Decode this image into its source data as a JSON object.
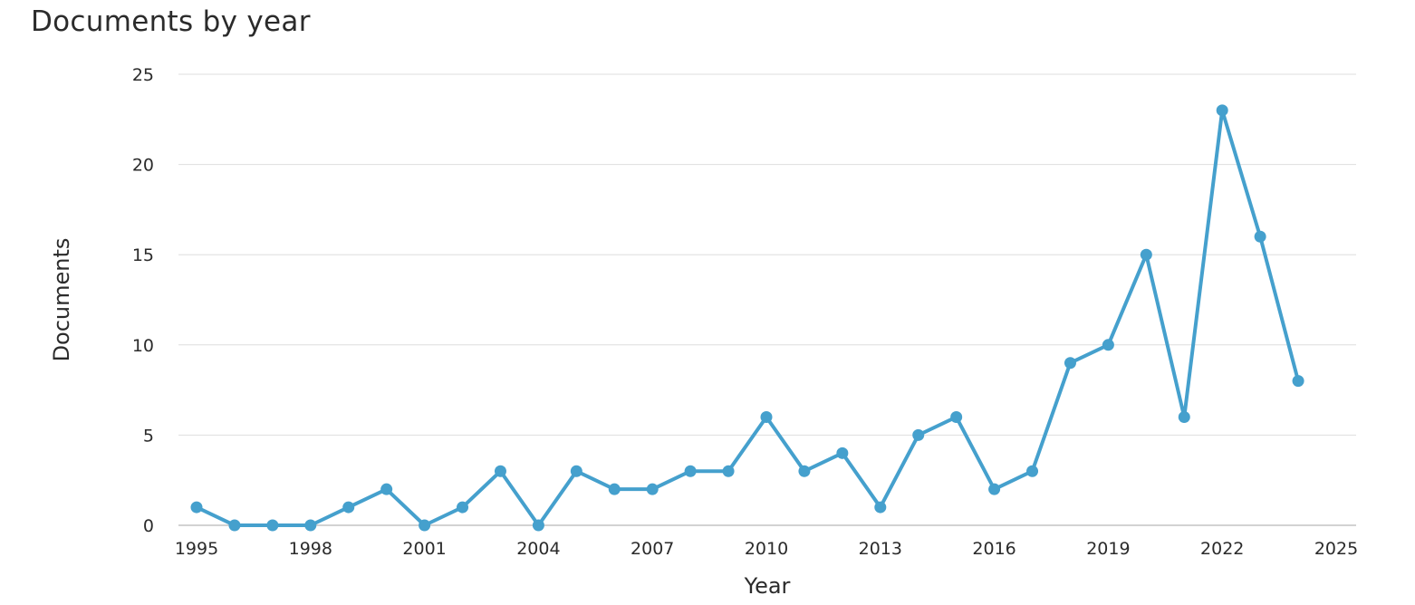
{
  "title": "Documents by year",
  "chart_data": {
    "type": "line",
    "title": "Documents by year",
    "xlabel": "Year",
    "ylabel": "Documents",
    "x_ticks": [
      1995,
      1998,
      2001,
      2004,
      2007,
      2010,
      2013,
      2016,
      2019,
      2022,
      2025
    ],
    "y_ticks": [
      0,
      5,
      10,
      15,
      20,
      25
    ],
    "xlim": [
      1995,
      2025
    ],
    "ylim": [
      0,
      25
    ],
    "grid": "horizontal",
    "color": "#45a0cd",
    "series": [
      {
        "x": [
          1995,
          1996,
          1997,
          1998,
          1999,
          2000,
          2001,
          2002,
          2003,
          2004,
          2005,
          2006,
          2007,
          2008,
          2009,
          2010,
          2011,
          2012,
          2013,
          2014,
          2015,
          2016,
          2017,
          2018,
          2019,
          2020,
          2021,
          2022,
          2023,
          2024
        ],
        "values": [
          1,
          0,
          0,
          0,
          1,
          2,
          0,
          1,
          3,
          0,
          3,
          2,
          2,
          3,
          3,
          6,
          3,
          4,
          1,
          5,
          6,
          2,
          3,
          9,
          10,
          15,
          6,
          23,
          16,
          8
        ]
      }
    ]
  }
}
